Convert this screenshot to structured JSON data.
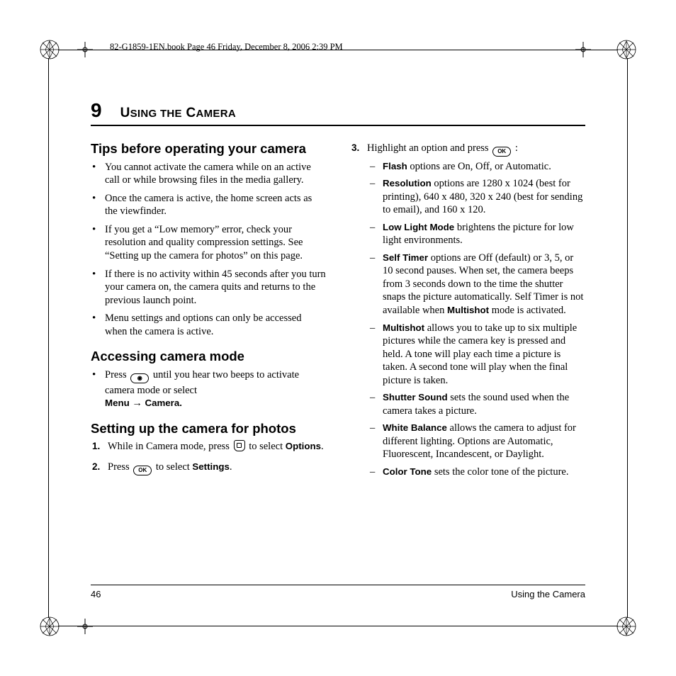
{
  "header": {
    "file_stamp": "82-G1859-1EN.book  Page 46  Friday, December 8, 2006  2:39 PM"
  },
  "chapter": {
    "number": "9",
    "title_html": "U<span style='font-size:15px'>SING THE</span> C<span style='font-size:15px'>AMERA</span>"
  },
  "left": {
    "s1_title": "Tips before operating your camera",
    "s1_items": [
      "You cannot activate the camera while on an active call or while browsing files in the media gallery.",
      "Once the camera is active, the home screen acts as the viewfinder.",
      "If you get a “Low memory” error, check your resolution and quality compression settings. See “Setting up the camera for photos” on this page.",
      "If there is no activity within 45 seconds after you turn your camera on, the camera quits and returns to the previous launch point.",
      "Menu settings and options can only be accessed when the camera is active."
    ],
    "s2_title": "Accessing camera mode",
    "s2_item_pre": "Press ",
    "s2_item_post": " until you hear two beeps to activate camera mode or select ",
    "s2_menu": "Menu",
    "s2_arrow": " → ",
    "s2_camera": "Camera.",
    "s3_title": "Setting up the camera for photos",
    "s3_step1_pre": "While in Camera mode, press ",
    "s3_step1_post": " to select ",
    "s3_step1_opt": "Options",
    "s3_step1_dot": ".",
    "s3_step2_pre": "Press ",
    "s3_step2_mid": " to select ",
    "s3_step2_opt": "Settings",
    "s3_step2_dot": "."
  },
  "right": {
    "step3_pre": "Highlight an option and press ",
    "step3_post": " :",
    "opts": [
      {
        "label": "Flash",
        "text": " options are On, Off, or Automatic."
      },
      {
        "label": "Resolution",
        "text": " options are 1280 x 1024 (best for printing), 640 x 480, 320 x 240 (best for sending to email), and 160 x 120."
      },
      {
        "label": "Low Light Mode",
        "text": " brightens the picture for low light environments."
      },
      {
        "label": "Self Timer",
        "text_pre": " options are Off (default) or 3, 5, or 10 second pauses. When set, the camera beeps from 3 seconds down to the time the shutter snaps the picture automatically. Self Timer is not available when ",
        "inline_bold": "Multishot",
        "text_post": " mode is activated."
      },
      {
        "label": "Multishot",
        "text": " allows you to take up to six multiple pictures while the camera key is pressed and held. A tone will play each time a picture is taken. A second tone will play when the final picture is taken."
      },
      {
        "label": "Shutter Sound",
        "text": " sets the sound used when the camera takes a picture."
      },
      {
        "label": "White Balance",
        "text": " allows the camera to adjust for different lighting. Options are Automatic, Fluorescent, Incandescent, or Daylight."
      },
      {
        "label": "Color Tone",
        "text": " sets the color tone of the picture."
      }
    ]
  },
  "footer": {
    "page_num": "46",
    "section": "Using the Camera"
  },
  "icons": {
    "ok_label": "OK",
    "camera_label": "◉"
  },
  "colors": {
    "text": "#000000",
    "bg": "#ffffff",
    "rule": "#000000"
  },
  "typography": {
    "body_pt": 11,
    "heading_pt": 14,
    "chapter_title_pt": 15,
    "sans_bold_family": "Arial"
  }
}
